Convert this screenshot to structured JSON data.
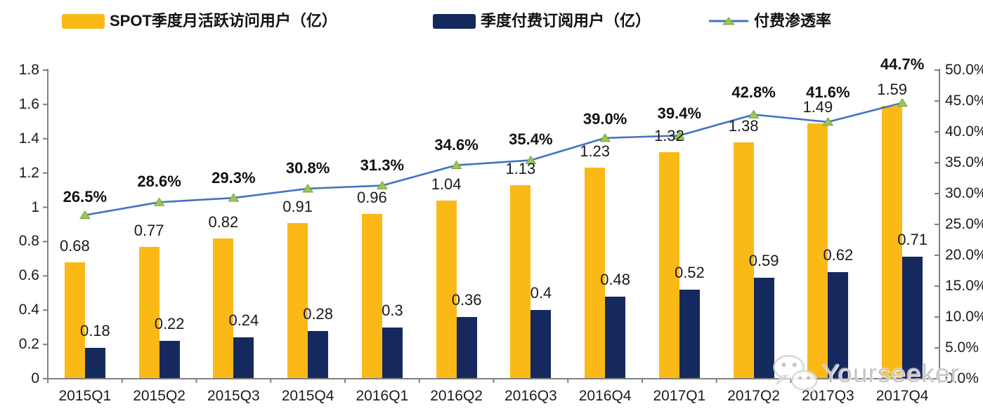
{
  "chart_data": {
    "type": "combo",
    "title": "",
    "categories": [
      "2015Q1",
      "2015Q2",
      "2015Q3",
      "2015Q4",
      "2016Q1",
      "2016Q2",
      "2016Q3",
      "2016Q4",
      "2017Q1",
      "2017Q2",
      "2017Q3",
      "2017Q4"
    ],
    "series": [
      {
        "name": "SPOT季度月活跃访问用户（亿）",
        "type": "bar",
        "axis": "left",
        "color": "#FBB917",
        "values": [
          0.68,
          0.77,
          0.82,
          0.91,
          0.96,
          1.04,
          1.13,
          1.23,
          1.32,
          1.38,
          1.49,
          1.59
        ],
        "labels": [
          "0.68",
          "0.77",
          "0.82",
          "0.91",
          "0.96",
          "1.04",
          "1.13",
          "1.23",
          "1.32",
          "1.38",
          "1.49",
          "1.59"
        ]
      },
      {
        "name": "季度付费订阅用户（亿）",
        "type": "bar",
        "axis": "left",
        "color": "#16295F",
        "values": [
          0.18,
          0.22,
          0.24,
          0.28,
          0.3,
          0.36,
          0.4,
          0.48,
          0.52,
          0.59,
          0.62,
          0.71
        ],
        "labels": [
          "0.18",
          "0.22",
          "0.24",
          "0.28",
          "0.3",
          "0.36",
          "0.4",
          "0.48",
          "0.52",
          "0.59",
          "0.62",
          "0.71"
        ]
      },
      {
        "name": "付费渗透率",
        "type": "line",
        "axis": "right",
        "color": "#4472C4",
        "marker_color": "#9CC653",
        "marker_stroke": "#7FA23E",
        "values": [
          26.5,
          28.6,
          29.3,
          30.8,
          31.3,
          34.6,
          35.4,
          39.0,
          39.4,
          42.8,
          41.6,
          44.7
        ],
        "labels": [
          "26.5%",
          "28.6%",
          "29.3%",
          "30.8%",
          "31.3%",
          "34.6%",
          "35.4%",
          "39.0%",
          "39.4%",
          "42.8%",
          "41.6%",
          "44.7%"
        ]
      }
    ],
    "left_axis": {
      "min": 0,
      "max": 1.8,
      "ticks": [
        "1.8",
        "1.6",
        "1.4",
        "1.2",
        "1",
        "0.8",
        "0.6",
        "0.4",
        "0.2",
        "0"
      ]
    },
    "right_axis": {
      "min": 0,
      "max": 50,
      "ticks": [
        "50.0%",
        "45.0%",
        "40.0%",
        "35.0%",
        "30.0%",
        "25.0%",
        "20.0%",
        "15.0%",
        "10.0%",
        "5.0%",
        "0.0%"
      ]
    },
    "grid": false,
    "legend_position": "top",
    "axis_color": "#808080"
  },
  "watermark": {
    "icon": "wechat-icon",
    "text": "Yourseeker"
  }
}
